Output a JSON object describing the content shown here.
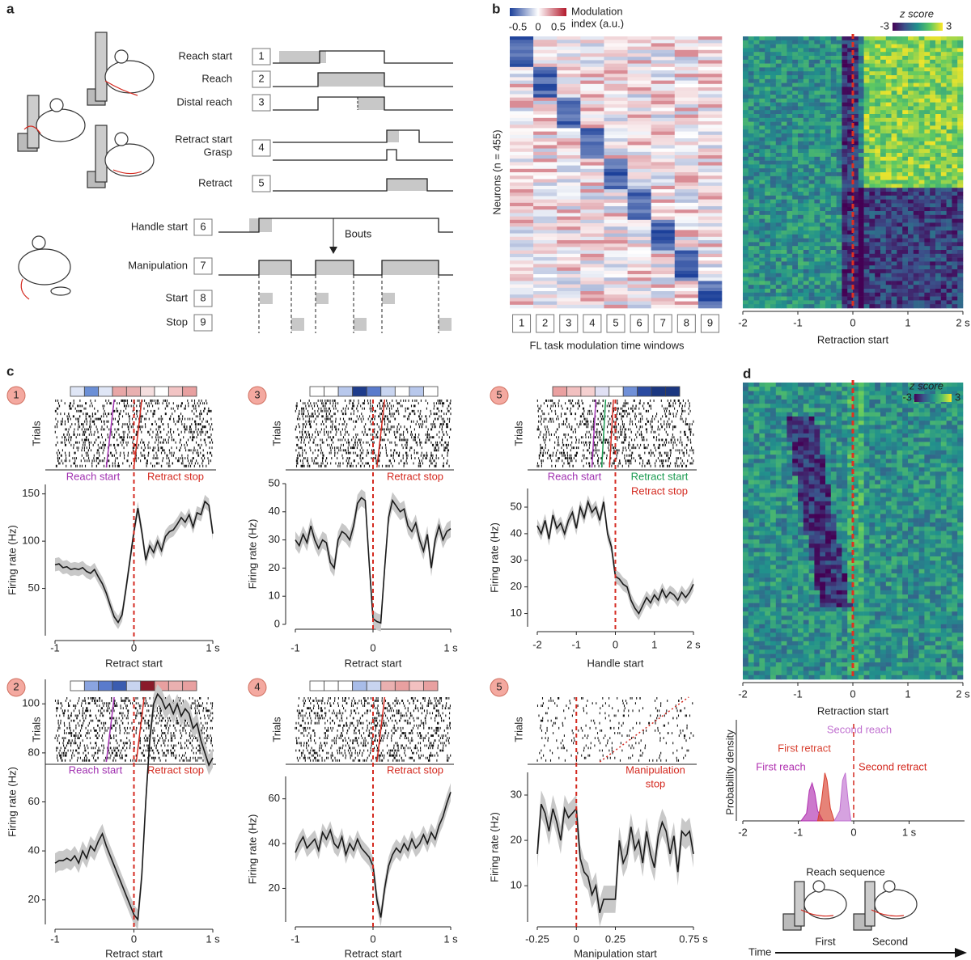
{
  "panel_a": {
    "label": "a",
    "bouts": "Bouts",
    "events": [
      {
        "n": "1",
        "names": [
          "Reach start"
        ]
      },
      {
        "n": "2",
        "names": [
          "Reach"
        ]
      },
      {
        "n": "3",
        "names": [
          "Distal reach"
        ]
      },
      {
        "n": "4",
        "names": [
          "Retract start",
          "Grasp"
        ]
      },
      {
        "n": "5",
        "names": [
          "Retract"
        ]
      },
      {
        "n": "6",
        "names": [
          "Handle start"
        ]
      },
      {
        "n": "7",
        "names": [
          "Manipulation"
        ]
      },
      {
        "n": "8",
        "names": [
          "Start"
        ]
      },
      {
        "n": "9",
        "names": [
          "Stop"
        ]
      }
    ]
  },
  "panel_b": {
    "label": "b",
    "colorbar_ticks": [
      -0.5,
      0,
      0.5
    ],
    "colorbar_label": [
      "Modulation",
      "index (a.u.)"
    ],
    "ylabel": "Neurons (n = 455)",
    "windows": [
      "1",
      "2",
      "3",
      "4",
      "5",
      "6",
      "7",
      "8",
      "9"
    ],
    "xlabel": "FL task modulation time windows",
    "zscore_label": "z score",
    "zscore_ticks": [
      -3,
      3
    ],
    "xlim": [
      -2,
      2
    ],
    "xticks": [
      -2,
      -1,
      0,
      1,
      {
        "value": 2,
        "label": "2 s"
      }
    ],
    "xlabel2": "Retraction start"
  },
  "panel_c_label": "c",
  "panel_d": {
    "label": "d",
    "zscore_label": "z score",
    "zscore_ticks": [
      -3,
      3
    ],
    "xlim": [
      -2,
      2
    ],
    "xticks": [
      -2,
      -1,
      0,
      1,
      {
        "value": 2,
        "label": "2 s"
      }
    ],
    "xlabel": "Retraction start",
    "sequence_title": "Reach sequence",
    "sequence_labels": [
      "First",
      "Second"
    ],
    "time_label": "Time"
  },
  "chart_data": [
    {
      "type": "line",
      "badge": "1",
      "raster_label": "Trials",
      "ylabel": "Firing rate (Hz)",
      "xlabel": "Retract start",
      "color": "#1a1a1a",
      "band_color": "#c8c8c8",
      "error": 7,
      "event_line": 0,
      "event_color": "#d42a20",
      "modulation": [
        "#dfe6f6",
        "#6b8fd6",
        "#dfe6f6",
        "#e8a6a6",
        "#e8b0b0",
        "#f5dede",
        "#ffffff",
        "#f2c4c4",
        "#e8a0a0"
      ],
      "annotations": [
        {
          "text": "Reach start",
          "color": "#a030b0"
        },
        {
          "text": "Retract stop",
          "color": "#d42a20"
        }
      ],
      "xlim": [
        -1,
        1
      ],
      "ylim": [
        0,
        160
      ],
      "xticks": [
        -1,
        0,
        {
          "value": 1,
          "label": "1 s"
        }
      ],
      "yticks": [
        50,
        100,
        150
      ],
      "x": [
        -1,
        -0.95,
        -0.9,
        -0.85,
        -0.8,
        -0.75,
        -0.7,
        -0.65,
        -0.6,
        -0.55,
        -0.5,
        -0.45,
        -0.4,
        -0.35,
        -0.3,
        -0.25,
        -0.2,
        -0.15,
        -0.1,
        -0.05,
        0,
        0.05,
        0.1,
        0.15,
        0.2,
        0.25,
        0.3,
        0.35,
        0.4,
        0.45,
        0.5,
        0.55,
        0.6,
        0.65,
        0.7,
        0.75,
        0.8,
        0.85,
        0.9,
        0.95,
        1
      ],
      "values": [
        75,
        76,
        72,
        73,
        70,
        71,
        70,
        72,
        68,
        66,
        70,
        62,
        55,
        45,
        32,
        20,
        14,
        22,
        50,
        80,
        110,
        135,
        110,
        80,
        95,
        88,
        100,
        90,
        105,
        110,
        112,
        118,
        125,
        120,
        128,
        115,
        130,
        128,
        142,
        138,
        108
      ]
    },
    {
      "type": "line",
      "badge": "3",
      "raster_label": "Trials",
      "ylabel": "Firing rate (Hz)",
      "xlabel": "Retract start",
      "color": "#1a1a1a",
      "band_color": "#c8c8c8",
      "error": 3,
      "event_line": 0,
      "event_color": "#d42a20",
      "modulation": [
        "#ffffff",
        "#ffffff",
        "#b8c8ec",
        "#1e3c8c",
        "#5a7bcc",
        "#c9d5f0",
        "#ffffff",
        "#b8c8ec",
        "#ffffff"
      ],
      "annotations": [
        {
          "text": "Retract stop",
          "color": "#d42a20"
        }
      ],
      "xlim": [
        -1,
        1
      ],
      "ylim": [
        0,
        50
      ],
      "xticks": [
        -1,
        0,
        {
          "value": 1,
          "label": "1 s"
        }
      ],
      "yticks": [
        0,
        10,
        20,
        30,
        40,
        50
      ],
      "x": [
        -1,
        -0.95,
        -0.9,
        -0.85,
        -0.8,
        -0.75,
        -0.7,
        -0.65,
        -0.6,
        -0.55,
        -0.5,
        -0.45,
        -0.4,
        -0.35,
        -0.3,
        -0.25,
        -0.2,
        -0.15,
        -0.1,
        -0.05,
        0,
        0.05,
        0.1,
        0.15,
        0.2,
        0.25,
        0.3,
        0.35,
        0.4,
        0.45,
        0.5,
        0.55,
        0.6,
        0.65,
        0.7,
        0.75,
        0.8,
        0.85,
        0.9,
        0.95,
        1
      ],
      "values": [
        30,
        28,
        32,
        29,
        35,
        30,
        27,
        30,
        29,
        22,
        20,
        30,
        33,
        32,
        30,
        35,
        43,
        45,
        44,
        22,
        2,
        1,
        0.5,
        20,
        38,
        44,
        42,
        40,
        41,
        35,
        33,
        36,
        30,
        26,
        32,
        20,
        30,
        35,
        30,
        33,
        34
      ]
    },
    {
      "type": "line",
      "badge": "5",
      "raster_label": "Trials",
      "ylabel": "Firing rate (Hz)",
      "xlabel": "Handle start",
      "color": "#1a1a1a",
      "band_color": "#c8c8c8",
      "error": 2.5,
      "event_line": 0,
      "event_color": "#d42a20",
      "modulation": [
        "#eaa0a0",
        "#f2c0c0",
        "#f5d0d0",
        "#e0e0f4",
        "#ffffff",
        "#7090d8",
        "#2a4aa0",
        "#1a3680",
        "#1a3680"
      ],
      "annotations": [
        {
          "text": "Reach start",
          "color": "#a030b0"
        },
        {
          "text": "Retract start",
          "color": "#1a9a50"
        },
        {
          "text": "Retract stop",
          "color": "#d42a20"
        }
      ],
      "xlim": [
        -2,
        2
      ],
      "ylim": [
        5,
        57
      ],
      "xticks": [
        -2,
        -1,
        0,
        1,
        {
          "value": 2,
          "label": "2 s"
        }
      ],
      "yticks": [
        10,
        20,
        30,
        40,
        50
      ],
      "x": [
        -2,
        -1.9,
        -1.8,
        -1.7,
        -1.6,
        -1.5,
        -1.4,
        -1.3,
        -1.2,
        -1.1,
        -1,
        -0.9,
        -0.8,
        -0.7,
        -0.6,
        -0.5,
        -0.4,
        -0.3,
        -0.2,
        -0.1,
        0,
        0.1,
        0.2,
        0.3,
        0.4,
        0.5,
        0.6,
        0.7,
        0.8,
        0.9,
        1,
        1.1,
        1.2,
        1.3,
        1.4,
        1.5,
        1.6,
        1.7,
        1.8,
        1.9,
        2
      ],
      "values": [
        43,
        40,
        45,
        38,
        47,
        42,
        44,
        40,
        45,
        48,
        42,
        50,
        46,
        52,
        48,
        50,
        45,
        52,
        40,
        35,
        24,
        23,
        21,
        20,
        15,
        12,
        10,
        13,
        16,
        14,
        17,
        15,
        19,
        16,
        18,
        17,
        15,
        18,
        16,
        18,
        21
      ]
    },
    {
      "type": "line",
      "badge": "2",
      "raster_label": "Trials",
      "ylabel": "Firing rate (Hz)",
      "xlabel": "Retract start",
      "color": "#1a1a1a",
      "band_color": "#c8c8c8",
      "error": 4,
      "event_line": 0,
      "event_color": "#d42a20",
      "modulation": [
        "#ffffff",
        "#8aa4e0",
        "#5a7bcc",
        "#3a5cb0",
        "#c8d4f0",
        "#8a1a2a",
        "#e8a0a0",
        "#eab0b0",
        "#e8a0a0"
      ],
      "annotations": [
        {
          "text": "Reach start",
          "color": "#a030b0"
        },
        {
          "text": "Retract stop",
          "color": "#d42a20"
        }
      ],
      "xlim": [
        -1,
        1
      ],
      "ylim": [
        10,
        110
      ],
      "xticks": [
        -1,
        0,
        {
          "value": 1,
          "label": "1 s"
        }
      ],
      "yticks": [
        20,
        40,
        60,
        80,
        100
      ],
      "x": [
        -1,
        -0.95,
        -0.9,
        -0.85,
        -0.8,
        -0.75,
        -0.7,
        -0.65,
        -0.6,
        -0.55,
        -0.5,
        -0.45,
        -0.4,
        -0.35,
        -0.3,
        -0.25,
        -0.2,
        -0.15,
        -0.1,
        -0.05,
        0,
        0.05,
        0.1,
        0.15,
        0.2,
        0.25,
        0.3,
        0.35,
        0.4,
        0.45,
        0.5,
        0.55,
        0.6,
        0.65,
        0.7,
        0.75,
        0.8,
        0.85,
        0.9,
        0.95,
        1
      ],
      "values": [
        35,
        36,
        36,
        37,
        36,
        38,
        35,
        40,
        37,
        42,
        40,
        44,
        47,
        42,
        38,
        34,
        30,
        26,
        22,
        18,
        14,
        12,
        30,
        60,
        85,
        100,
        104,
        102,
        98,
        100,
        96,
        100,
        95,
        98,
        96,
        90,
        92,
        85,
        80,
        75,
        78
      ]
    },
    {
      "type": "line",
      "badge": "4",
      "raster_label": "Trials",
      "ylabel": "Firing rate (Hz)",
      "xlabel": "Retract start",
      "color": "#1a1a1a",
      "band_color": "#c8c8c8",
      "error": 4,
      "event_line": 0,
      "event_color": "#d42a20",
      "modulation": [
        "#ffffff",
        "#ffffff",
        "#ffffff",
        "#a8bce8",
        "#c8d4f0",
        "#eab0b0",
        "#e8a0a0",
        "#f2c0c0",
        "#e8a0a0"
      ],
      "annotations": [
        {
          "text": "Retract stop",
          "color": "#d42a20"
        }
      ],
      "xlim": [
        -1,
        1
      ],
      "ylim": [
        5,
        70
      ],
      "xticks": [
        -1,
        0,
        {
          "value": 1,
          "label": "1 s"
        }
      ],
      "yticks": [
        20,
        40,
        60
      ],
      "x": [
        -1,
        -0.95,
        -0.9,
        -0.85,
        -0.8,
        -0.75,
        -0.7,
        -0.65,
        -0.6,
        -0.55,
        -0.5,
        -0.45,
        -0.4,
        -0.35,
        -0.3,
        -0.25,
        -0.2,
        -0.15,
        -0.1,
        -0.05,
        0,
        0.05,
        0.1,
        0.15,
        0.2,
        0.25,
        0.3,
        0.35,
        0.4,
        0.45,
        0.5,
        0.55,
        0.6,
        0.65,
        0.7,
        0.75,
        0.8,
        0.85,
        0.9,
        0.95,
        1
      ],
      "values": [
        36,
        40,
        43,
        38,
        40,
        42,
        37,
        45,
        42,
        46,
        40,
        38,
        43,
        35,
        40,
        37,
        42,
        38,
        36,
        34,
        30,
        15,
        7,
        20,
        30,
        35,
        38,
        36,
        40,
        37,
        42,
        38,
        40,
        44,
        40,
        45,
        42,
        48,
        52,
        58,
        63
      ]
    },
    {
      "type": "line",
      "badge": "5",
      "raster_label": "Trials",
      "ylabel": "Firing rate (Hz)",
      "xlabel": "Manipulation start",
      "color": "#1a1a1a",
      "band_color": "#c8c8c8",
      "error": 3,
      "event_line": 0,
      "event_color": "#d42a20",
      "annotations": [
        {
          "text": "Manipulation",
          "color": "#d42a20"
        },
        {
          "text": "stop",
          "color": "#d42a20"
        }
      ],
      "xlim": [
        -0.25,
        0.75
      ],
      "ylim": [
        2,
        35
      ],
      "xticks": [
        -0.25,
        0,
        0.25,
        {
          "value": 0.75,
          "label": "0.75 s"
        }
      ],
      "yticks": [
        10,
        20,
        30
      ],
      "x": [
        -0.25,
        -0.225,
        -0.2,
        -0.175,
        -0.15,
        -0.125,
        -0.1,
        -0.075,
        -0.05,
        -0.025,
        0,
        0.025,
        0.05,
        0.075,
        0.1,
        0.125,
        0.15,
        0.175,
        0.2,
        0.225,
        0.25,
        0.275,
        0.3,
        0.325,
        0.35,
        0.375,
        0.4,
        0.425,
        0.45,
        0.475,
        0.5,
        0.525,
        0.55,
        0.575,
        0.6,
        0.625,
        0.65,
        0.675,
        0.7,
        0.725,
        0.75
      ],
      "values": [
        17,
        28,
        26,
        22,
        27,
        24,
        20,
        27,
        25,
        26,
        27,
        16,
        13,
        12,
        8,
        10,
        4,
        7,
        7,
        7,
        7,
        20,
        15,
        17,
        23,
        18,
        20,
        15,
        22,
        17,
        14,
        21,
        24,
        22,
        17,
        21,
        13,
        22,
        21,
        22,
        17
      ]
    },
    {
      "type": "density",
      "ylabel": "Probability density",
      "xlim": [
        -2,
        2
      ],
      "ylim": [
        0,
        4
      ],
      "xticks": [
        -2,
        -1,
        0,
        {
          "value": 1,
          "label": "1 s"
        }
      ],
      "event_line": 0,
      "event_label": "Second retract",
      "event_color": "#d42a20",
      "series": [
        {
          "name": "First reach",
          "color": "#b030b0",
          "x": [
            -0.95,
            -0.85,
            -0.8,
            -0.75,
            -0.7,
            -0.65,
            -0.55
          ],
          "values": [
            0,
            0.3,
            1.2,
            1.5,
            1.1,
            0.4,
            0
          ]
        },
        {
          "name": "First retract",
          "color": "#d84030",
          "x": [
            -0.65,
            -0.58,
            -0.52,
            -0.48,
            -0.42,
            -0.35
          ],
          "values": [
            0,
            0.8,
            1.9,
            1.6,
            0.5,
            0
          ]
        },
        {
          "name": "Second reach",
          "color": "#c070d0",
          "x": [
            -0.35,
            -0.25,
            -0.2,
            -0.15,
            -0.1,
            -0.05
          ],
          "values": [
            0,
            0.4,
            1.6,
            1.9,
            0.8,
            0
          ]
        }
      ]
    }
  ]
}
